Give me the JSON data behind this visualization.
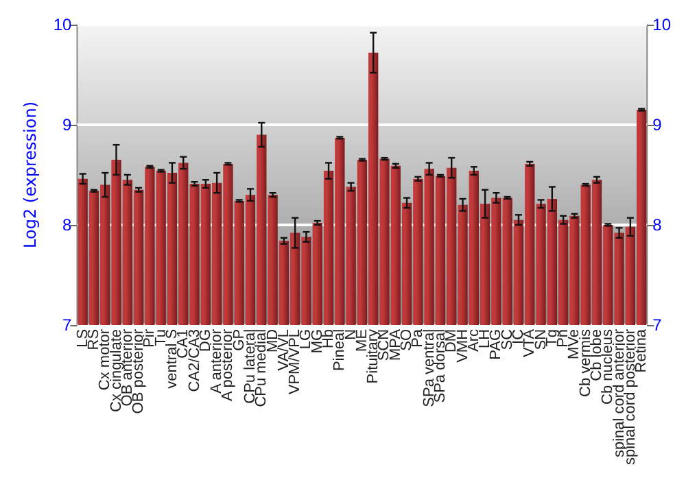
{
  "chart_data": {
    "type": "bar",
    "ylabel": "Log2 (expression)",
    "categories": [
      "LS",
      "RS",
      "Cx motor",
      "Cx cingulate",
      "OB anterior",
      "OB posterior",
      "Pir",
      "Tu",
      "ventral S",
      "CA1",
      "CA2/CA3",
      "DG",
      "A anterior",
      "A posterior",
      "GP",
      "CPu lateral",
      "CPu medial",
      "MD",
      "VA/VL",
      "VPM/VPL",
      "LG",
      "MG",
      "Hb",
      "Pineal",
      "N",
      "ME",
      "Pituitary",
      "SCN",
      "MPA",
      "SO",
      "Pa",
      "SPa ventral",
      "SPa dorsal",
      "DM",
      "VMH",
      "Arc",
      "LH",
      "PAG",
      "SC",
      "IC",
      "VTA",
      "SN",
      "Tg",
      "Pn",
      "MVe",
      "Cb vermis",
      "Cb lobe",
      "Cb nucleus",
      "spinal cord anterior",
      "spinal cord posterior",
      "Retina"
    ],
    "series": [
      {
        "color": "#c0393b",
        "values": [
          8.46,
          8.34,
          8.4,
          8.65,
          8.45,
          8.35,
          8.58,
          8.54,
          8.52,
          8.62,
          8.41,
          8.41,
          8.42,
          8.61,
          8.24,
          8.3,
          8.9,
          8.3,
          7.84,
          7.92,
          7.88,
          8.02,
          8.54,
          8.87,
          8.38,
          8.65,
          9.72,
          8.66,
          8.59,
          8.22,
          8.46,
          8.56,
          8.49,
          8.57,
          8.2,
          8.54,
          8.21,
          8.27,
          8.27,
          8.05,
          8.61,
          8.21,
          8.26,
          8.05,
          8.09,
          8.4,
          8.45,
          8,
          7.92,
          7.98,
          9.15
        ],
        "errors": [
          0.05,
          0.01,
          0.12,
          0.15,
          0.05,
          0.02,
          0.01,
          0.01,
          0.1,
          0.06,
          0.02,
          0.04,
          0.1,
          0.01,
          0.01,
          0.06,
          0.12,
          0.02,
          0.03,
          0.15,
          0.05,
          0.02,
          0.08,
          0.01,
          0.04,
          0.01,
          0.2,
          0.01,
          0.02,
          0.05,
          0.02,
          0.06,
          0.01,
          0.1,
          0.06,
          0.04,
          0.14,
          0.05,
          0.01,
          0.05,
          0.02,
          0.04,
          0.12,
          0.04,
          0.02,
          0.01,
          0.03,
          0.01,
          0.05,
          0.09,
          0.01
        ]
      }
    ],
    "ylim": [
      7,
      10
    ],
    "yticks": [
      7,
      8,
      9,
      10
    ],
    "y2lim": [
      7,
      10
    ],
    "y2ticks": [
      7,
      8,
      9,
      10
    ],
    "grid": "y"
  }
}
